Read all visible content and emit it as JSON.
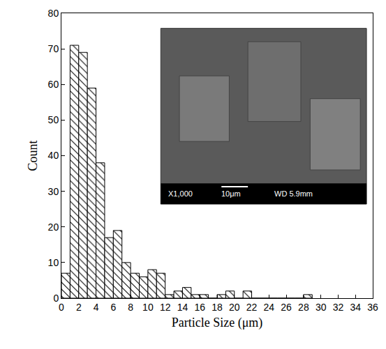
{
  "chart_data": {
    "type": "histogram",
    "bins": [
      0,
      1,
      2,
      3,
      4,
      5,
      6,
      7,
      8,
      9,
      10,
      11,
      12,
      13,
      14,
      15,
      16,
      17,
      18,
      19,
      20,
      21,
      22,
      23,
      24,
      25,
      26,
      27,
      28,
      29
    ],
    "values": [
      7,
      71,
      69,
      59,
      38,
      17,
      19,
      10,
      7,
      6,
      8,
      7,
      1,
      2,
      3,
      1,
      1,
      0,
      1,
      2,
      0,
      2,
      0,
      0,
      0,
      0,
      0,
      0,
      1
    ],
    "xlabel": "Particle Size (μm)",
    "ylabel": "Count",
    "xlim": [
      0,
      36
    ],
    "xticks": [
      0,
      2,
      4,
      6,
      8,
      10,
      12,
      14,
      16,
      18,
      20,
      22,
      24,
      26,
      28,
      30,
      32,
      34,
      36
    ],
    "ylim": [
      0,
      80
    ],
    "yticks": [
      0,
      10,
      20,
      30,
      40,
      50,
      60,
      70,
      80
    ],
    "color": "#000000",
    "annotations": [
      "X1,000",
      "10μm",
      "WD 5.9mm"
    ]
  }
}
